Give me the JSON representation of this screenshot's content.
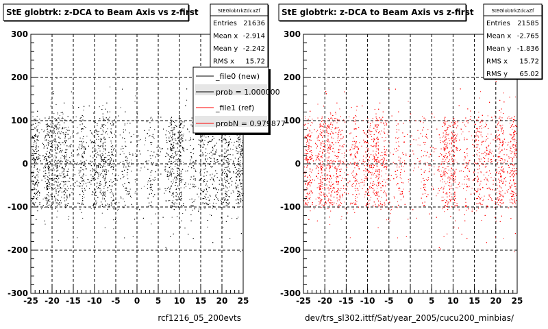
{
  "footer_text": "",
  "chart_data": [
    {
      "type": "scatter",
      "title": "StE globtrk: z-DCA to Beam Axis vs z-first",
      "stats": {
        "header": "StEGlobtrkZdcaZf",
        "rows": [
          {
            "label": "Entries",
            "value": "21636"
          },
          {
            "label": "Mean x",
            "value": "-2.914"
          },
          {
            "label": "Mean y",
            "value": "-2.242"
          },
          {
            "label": "RMS x",
            "value": "15.72"
          }
        ]
      },
      "legend": [
        {
          "label": "_file0 (new)",
          "color": "#000000"
        },
        {
          "label": "prob = 1.000000",
          "color": "#000000"
        },
        {
          "label": "_file1 (ref)",
          "color": "#ff0000"
        },
        {
          "label": "probN = 0.979877",
          "color": "#ff0000"
        }
      ],
      "xlabel": "rcf1216_05_200evts",
      "ylabel": "",
      "xlim": [
        -25,
        25
      ],
      "ylim": [
        -300,
        300
      ],
      "xticks": [
        -25,
        -20,
        -15,
        -10,
        -5,
        0,
        5,
        10,
        15,
        20,
        25
      ],
      "yticks": [
        -300,
        -200,
        -100,
        0,
        100,
        200,
        300
      ],
      "grid": true,
      "marker_color": "#000000",
      "series": [
        {
          "x_band_centers": [
            -24,
            -21,
            -19,
            -17,
            -13,
            -10,
            -8,
            -6,
            -3,
            3,
            8,
            10,
            13,
            16,
            18,
            21,
            24
          ],
          "x_band_weights": [
            3,
            4,
            3,
            3,
            2,
            2,
            3,
            2,
            1,
            1,
            3,
            3,
            1,
            2,
            2,
            3,
            4
          ],
          "y_core": [
            -100,
            110
          ],
          "y_sparse": [
            -200,
            200
          ],
          "points": 6500
        }
      ]
    },
    {
      "type": "scatter",
      "title": "StE globtrk: z-DCA to Beam Axis vs z-first",
      "stats": {
        "header": "StEGlobtrkZdcaZf",
        "rows": [
          {
            "label": "Entries",
            "value": "21585"
          },
          {
            "label": "Mean x",
            "value": "-2.765"
          },
          {
            "label": "Mean y",
            "value": "-1.836"
          },
          {
            "label": "RMS x",
            "value": "15.72"
          },
          {
            "label": "RMS y",
            "value": "65.02"
          }
        ]
      },
      "legend": [],
      "xlabel": "dev/trs_sl302.ittf/Sat/year_2005/cucu200_minbias/",
      "ylabel": "",
      "xlim": [
        -25,
        25
      ],
      "ylim": [
        -300,
        300
      ],
      "xticks": [
        -25,
        -20,
        -15,
        -10,
        -5,
        0,
        5,
        10,
        15,
        20,
        25
      ],
      "yticks": [
        -300,
        -200,
        -100,
        0,
        100,
        200,
        300
      ],
      "grid": true,
      "marker_color": "#ff0000",
      "series": [
        {
          "x_band_centers": [
            -24,
            -21,
            -19,
            -17,
            -13,
            -10,
            -8,
            -6,
            -3,
            3,
            8,
            10,
            13,
            16,
            18,
            21,
            24
          ],
          "x_band_weights": [
            3,
            4,
            3,
            3,
            2,
            2,
            3,
            2,
            1,
            1,
            3,
            3,
            1,
            2,
            2,
            3,
            4
          ],
          "y_core": [
            -100,
            110
          ],
          "y_sparse": [
            -200,
            200
          ],
          "points": 6500
        }
      ]
    }
  ]
}
